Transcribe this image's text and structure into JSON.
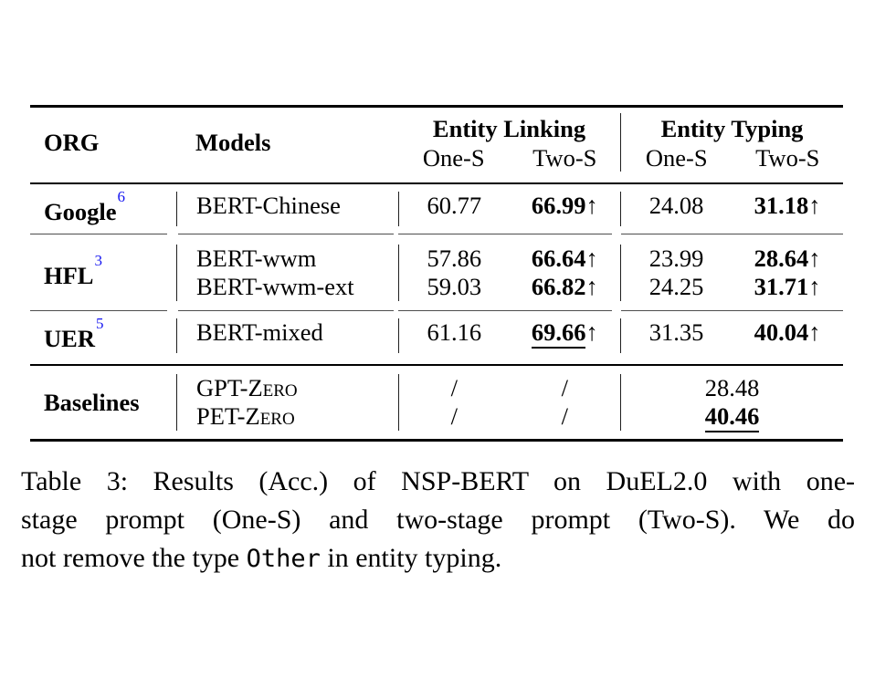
{
  "table": {
    "header": {
      "org": "ORG",
      "models": "Models",
      "entity_linking": "Entity Linking",
      "entity_typing": "Entity Typing",
      "one_s": "One-S",
      "two_s": "Two-S"
    },
    "groups": [
      {
        "org": "Google",
        "org_ref": "6",
        "rows": [
          {
            "model": "BERT-Chinese",
            "el_one": "60.77",
            "el_two": "66.99",
            "el_arrow": "↑",
            "et_one": "24.08",
            "et_two": "31.18",
            "et_arrow": "↑"
          }
        ]
      },
      {
        "org": "HFL",
        "org_ref": "3",
        "rows": [
          {
            "model": "BERT-wwm",
            "el_one": "57.86",
            "el_two": "66.64",
            "el_arrow": "↑",
            "et_one": "23.99",
            "et_two": "28.64",
            "et_arrow": "↑"
          },
          {
            "model": "BERT-wwm-ext",
            "el_one": "59.03",
            "el_two": "66.82",
            "el_arrow": "↑",
            "et_one": "24.25",
            "et_two": "31.71",
            "et_arrow": "↑"
          }
        ]
      },
      {
        "org": "UER",
        "org_ref": "5",
        "rows": [
          {
            "model": "BERT-mixed",
            "el_one": "61.16",
            "el_two": "69.66",
            "el_arrow": "↑",
            "et_one": "31.35",
            "et_two": "40.04",
            "et_arrow": "↑"
          }
        ]
      }
    ],
    "baselines": {
      "org": "Baselines",
      "rows": [
        {
          "model": "GPT-Zero",
          "el_one": "/",
          "el_two": "/",
          "et": "28.48"
        },
        {
          "model": "PET-Zero",
          "el_one": "/",
          "el_two": "/",
          "et": "40.46"
        }
      ]
    }
  },
  "caption": {
    "line1": "Table 3: Results (Acc.) of NSP-BERT on DuEL2.0 with one-",
    "line2": "stage prompt (One-S) and two-stage prompt (Two-S). We do",
    "line3_before": "not remove the type ",
    "line3_code": "Other",
    "line3_after": " in entity typing."
  },
  "colors": {
    "ref_blue": "#1414f0",
    "rule_black": "#000000",
    "cline_gray": "#4d4d4d"
  }
}
